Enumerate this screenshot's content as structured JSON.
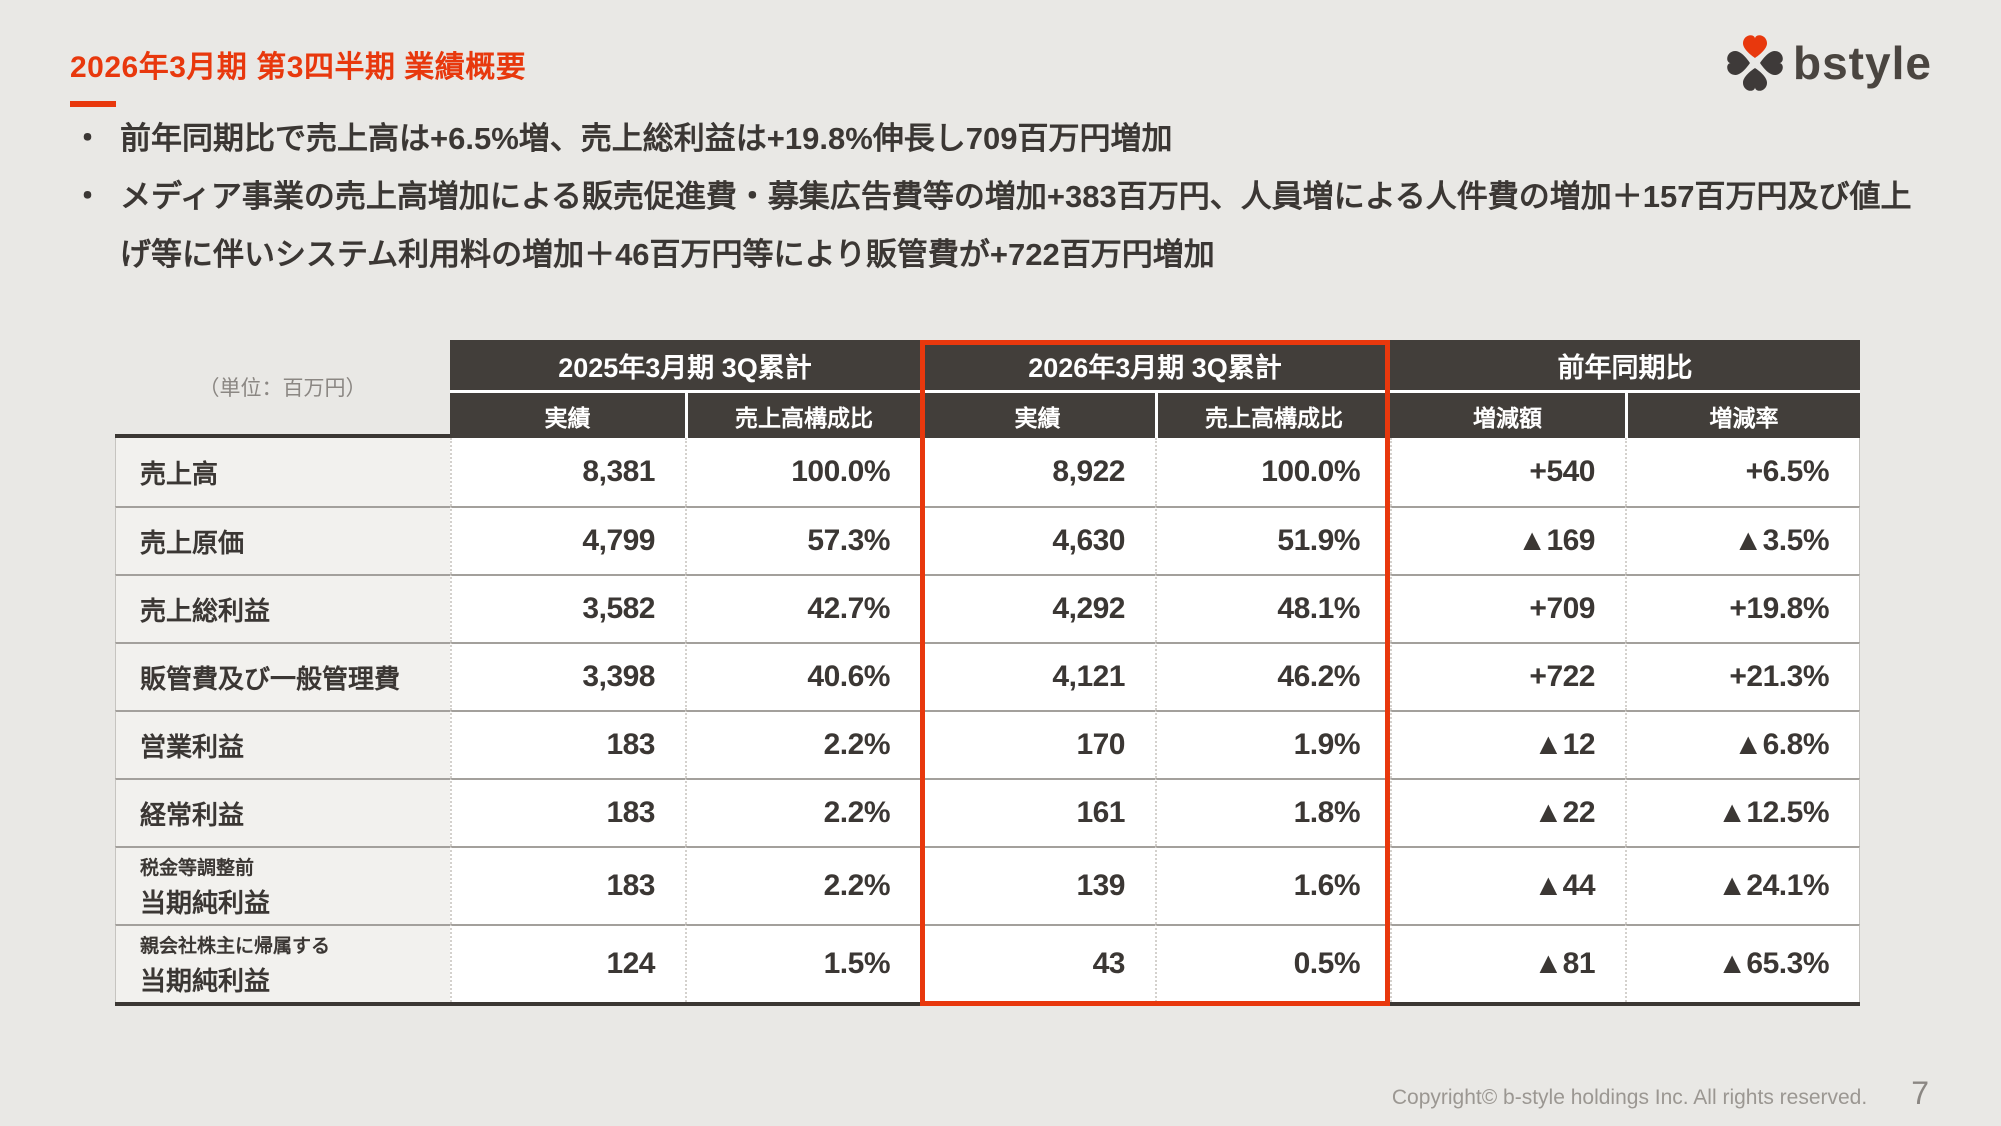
{
  "slide": {
    "title": "2026年3月期 第3四半期 業績概要",
    "footer": "Copyright© b-style holdings Inc. All rights reserved.",
    "page_number": "7",
    "colors": {
      "accent": "#e8380d",
      "header_dark": "#423e3a",
      "background": "#e9e8e5"
    }
  },
  "logo": {
    "text": "bstyle",
    "heart_red": "#e8380d",
    "heart_dark": "#3e3a39"
  },
  "bullets": [
    "前年同期比で売上高は+6.5%増、売上総利益は+19.8%伸長し709百万円増加",
    "メディア事業の売上高増加による販売促進費・募集広告費等の増加+383百万円、人員増による人件費の増加＋157百万円及び値上げ等に伴いシステム利用料の増加＋46百万円等により販管費が+722百万円増加"
  ],
  "table": {
    "unit_label": "（単位：百万円）",
    "column_groups": [
      {
        "label": "2025年3月期 3Q累計",
        "highlighted": false
      },
      {
        "label": "2026年3月期 3Q累計",
        "highlighted": true
      },
      {
        "label": "前年同期比",
        "highlighted": false
      }
    ],
    "sub_headers": [
      "実績",
      "売上高構成比",
      "実績",
      "売上高構成比",
      "増減額",
      "増減率"
    ],
    "rows": [
      {
        "label": "売上高",
        "sublabel": "",
        "values": [
          "8,381",
          "100.0%",
          "8,922",
          "100.0%",
          "+540",
          "+6.5%"
        ]
      },
      {
        "label": "売上原価",
        "sublabel": "",
        "values": [
          "4,799",
          "57.3%",
          "4,630",
          "51.9%",
          "▲169",
          "▲3.5%"
        ]
      },
      {
        "label": "売上総利益",
        "sublabel": "",
        "values": [
          "3,582",
          "42.7%",
          "4,292",
          "48.1%",
          "+709",
          "+19.8%"
        ]
      },
      {
        "label": "販管費及び一般管理費",
        "sublabel": "",
        "values": [
          "3,398",
          "40.6%",
          "4,121",
          "46.2%",
          "+722",
          "+21.3%"
        ]
      },
      {
        "label": "営業利益",
        "sublabel": "",
        "values": [
          "183",
          "2.2%",
          "170",
          "1.9%",
          "▲12",
          "▲6.8%"
        ]
      },
      {
        "label": "経常利益",
        "sublabel": "",
        "values": [
          "183",
          "2.2%",
          "161",
          "1.8%",
          "▲22",
          "▲12.5%"
        ]
      },
      {
        "label": "当期純利益",
        "sublabel": "税金等調整前",
        "values": [
          "183",
          "2.2%",
          "139",
          "1.6%",
          "▲44",
          "▲24.1%"
        ]
      },
      {
        "label": "当期純利益",
        "sublabel": "親会社株主に帰属する",
        "values": [
          "124",
          "1.5%",
          "43",
          "0.5%",
          "▲81",
          "▲65.3%"
        ]
      }
    ]
  }
}
